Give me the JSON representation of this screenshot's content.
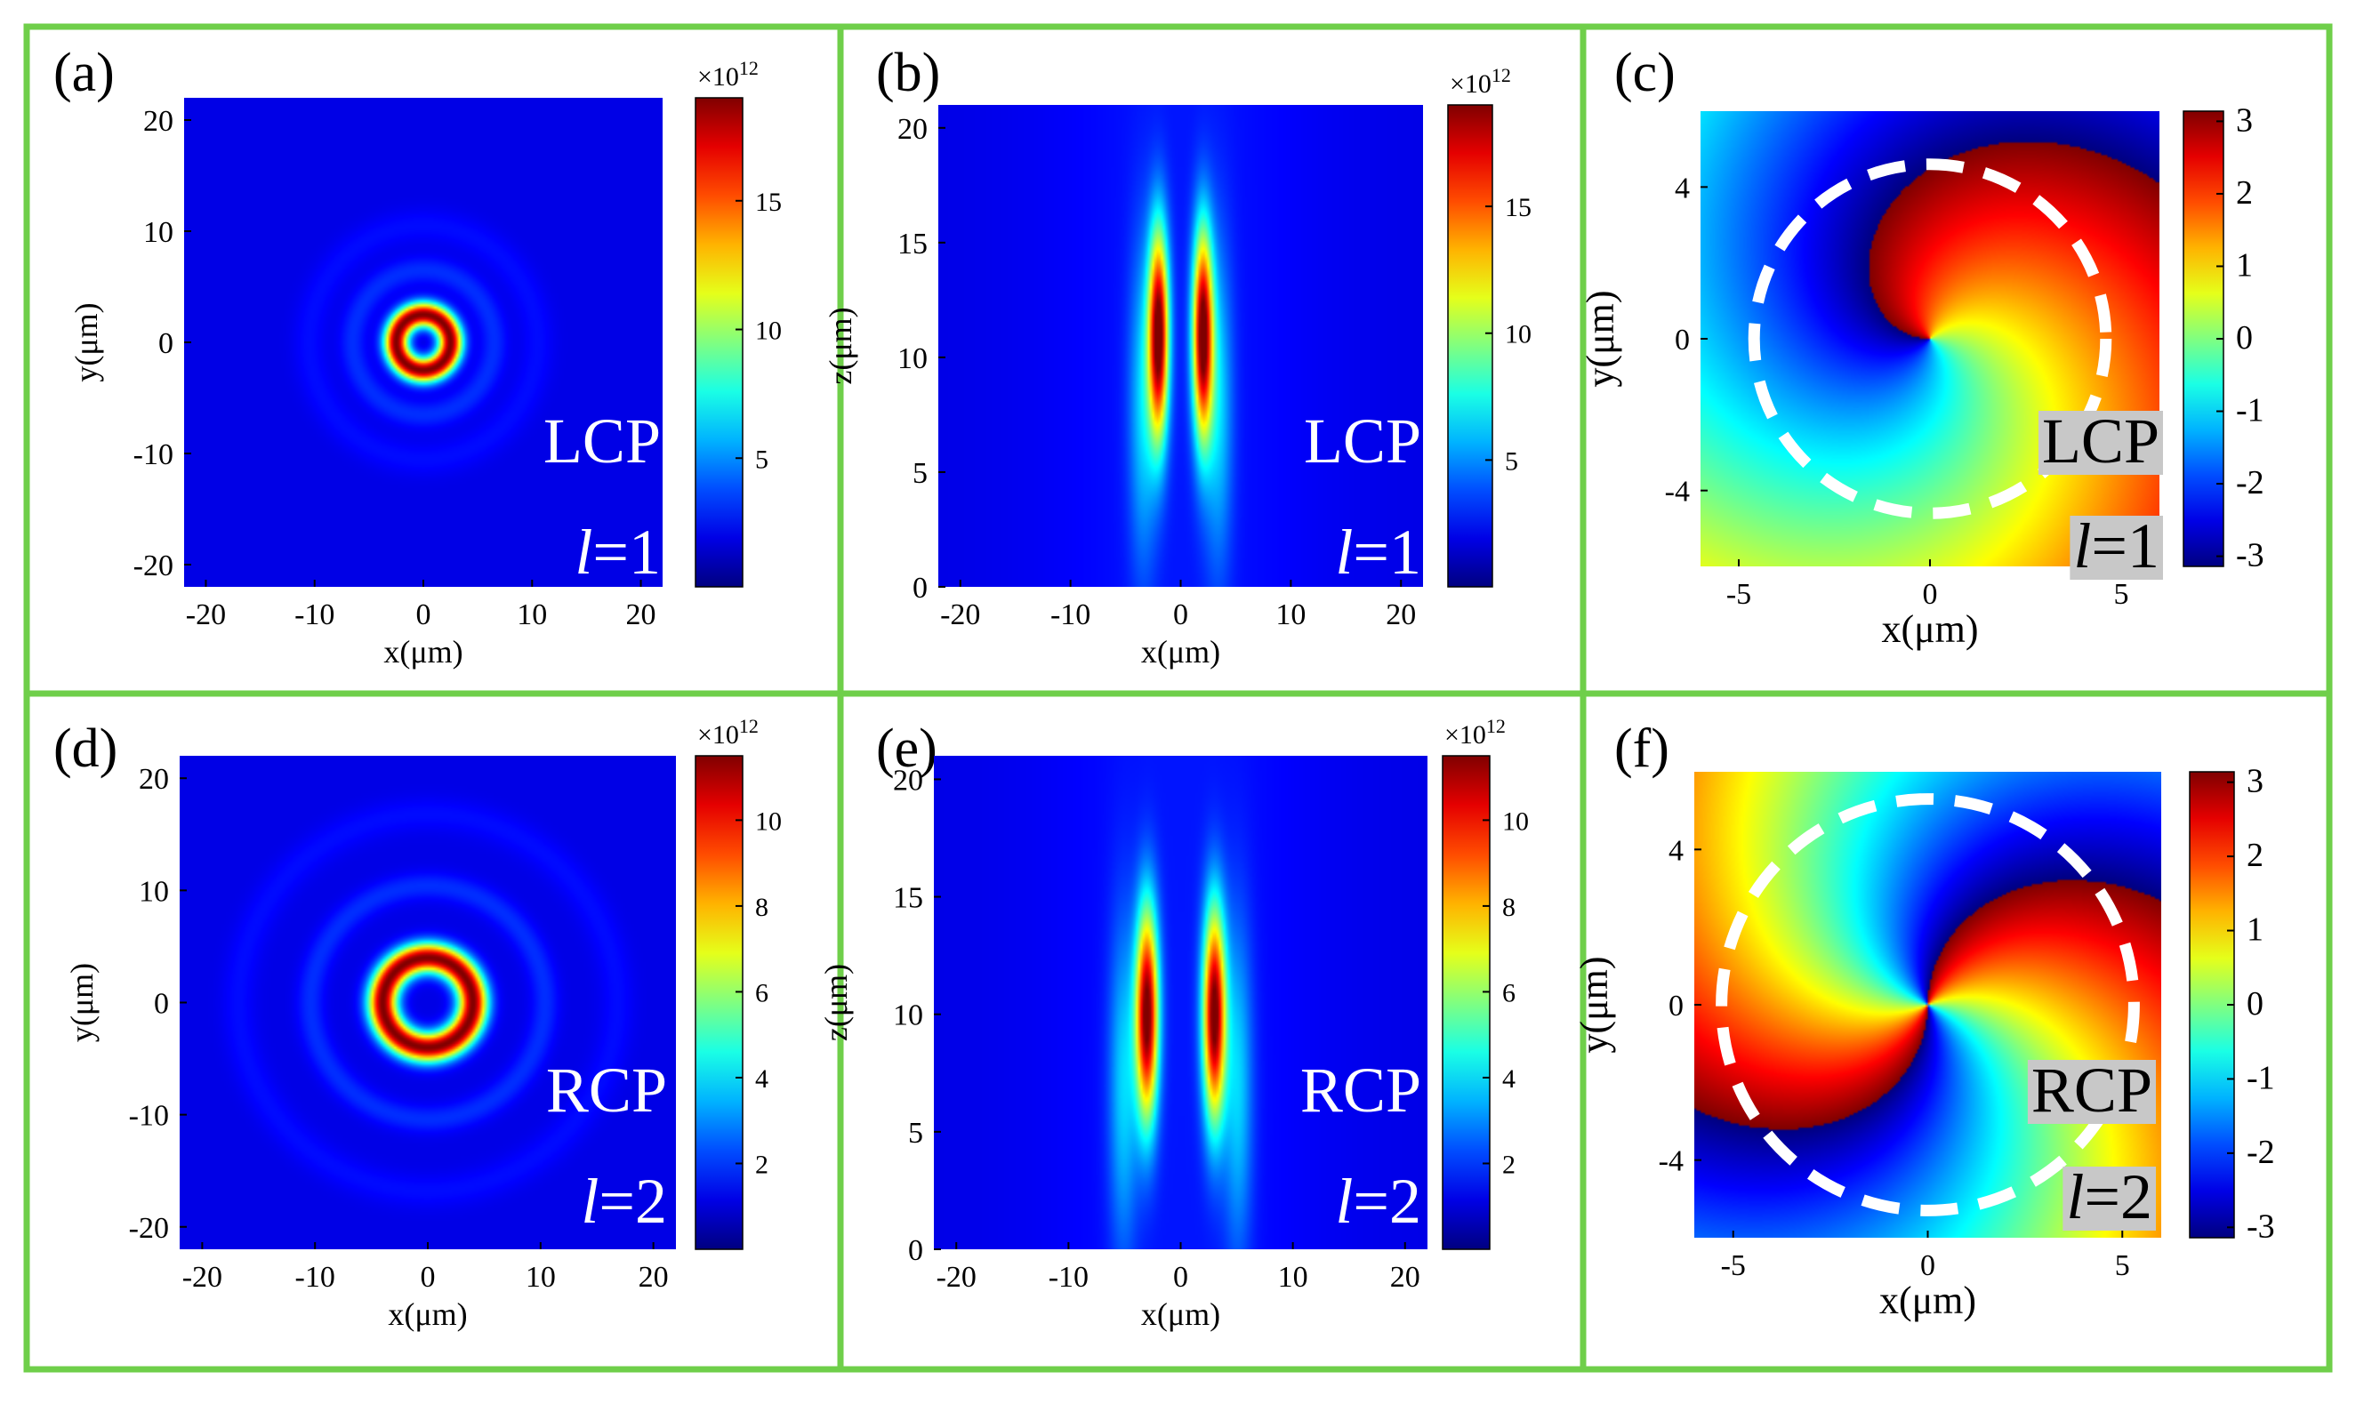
{
  "colors": {
    "frame": "#6fcf4a",
    "jet": [
      "#00008f",
      "#0000ff",
      "#00ffff",
      "#ffff00",
      "#ff0000",
      "#800000"
    ],
    "label_box": "#c8c8c8",
    "dashed_circle": "#ffffff"
  },
  "chart_data": [
    {
      "id": "a",
      "type": "heatmap",
      "panel_label": "(a)",
      "xlabel": "x(μm)",
      "ylabel": "y(μm)",
      "xlim": [
        -22,
        22
      ],
      "ylim": [
        -22,
        22
      ],
      "xticks": [
        -20,
        -10,
        0,
        10,
        20
      ],
      "xtick_labels": [
        "-20",
        "-10",
        "0",
        "10",
        "20"
      ],
      "yticks": [
        -20,
        -10,
        0,
        10,
        20
      ],
      "ytick_labels": [
        "-20",
        "-10",
        "0",
        "10",
        "20"
      ],
      "colorbar": {
        "ticks": [
          5,
          10,
          15
        ],
        "tick_labels": [
          "5",
          "10",
          "15"
        ],
        "range": [
          0,
          19
        ],
        "exponent": "×10",
        "exponent_sup": "12"
      },
      "annotation_lines": [
        "LCP",
        "=1"
      ],
      "annotation_italic": "l",
      "pattern": {
        "kind": "ring",
        "peak_radius_um": 2.5,
        "width_um": 1.1
      }
    },
    {
      "id": "b",
      "type": "heatmap",
      "panel_label": "(b)",
      "xlabel": "x(μm)",
      "ylabel": "z(μm)",
      "xlim": [
        -22,
        22
      ],
      "ylim": [
        0,
        21
      ],
      "xticks": [
        -20,
        -10,
        0,
        10,
        20
      ],
      "xtick_labels": [
        "-20",
        "-10",
        "0",
        "10",
        "20"
      ],
      "yticks": [
        0,
        5,
        10,
        15,
        20
      ],
      "ytick_labels": [
        "0",
        "5",
        "10",
        "15",
        "20"
      ],
      "colorbar": {
        "ticks": [
          5,
          10,
          15
        ],
        "tick_labels": [
          "5",
          "10",
          "15"
        ],
        "range": [
          0,
          19
        ],
        "exponent": "×10",
        "exponent_sup": "12"
      },
      "annotation_lines": [
        "LCP",
        "=1"
      ],
      "annotation_italic": "l",
      "pattern": {
        "kind": "lobes",
        "lobe_x_um": 2.0,
        "center_z_um": 11,
        "length_um": 4.5,
        "width_um": 0.9
      }
    },
    {
      "id": "c",
      "type": "heatmap",
      "panel_label": "(c)",
      "xlabel": "x(μm)",
      "ylabel": "y(μm)",
      "xlim": [
        -6,
        6
      ],
      "ylim": [
        -6,
        6
      ],
      "xticks": [
        -5,
        0,
        5
      ],
      "xtick_labels": [
        "-5",
        "0",
        "5"
      ],
      "yticks": [
        -4,
        0,
        4
      ],
      "ytick_labels": [
        "-4",
        "0",
        "4"
      ],
      "colorbar": {
        "ticks": [
          -3,
          -2,
          -1,
          0,
          1,
          2,
          3
        ],
        "tick_labels": [
          "-3",
          "-2",
          "-1",
          "0",
          "1",
          "2",
          "3"
        ],
        "range": [
          -3.14,
          3.14
        ]
      },
      "annotation_lines": [
        "LCP",
        "=1"
      ],
      "annotation_italic": "l",
      "pattern": {
        "kind": "phase",
        "charge": 1,
        "circle_radius_um": 4.6
      }
    },
    {
      "id": "d",
      "type": "heatmap",
      "panel_label": "(d)",
      "xlabel": "x(μm)",
      "ylabel": "y(μm)",
      "xlim": [
        -22,
        22
      ],
      "ylim": [
        -22,
        22
      ],
      "xticks": [
        -20,
        -10,
        0,
        10,
        20
      ],
      "xtick_labels": [
        "-20",
        "-10",
        "0",
        "10",
        "20"
      ],
      "yticks": [
        -20,
        -10,
        0,
        10,
        20
      ],
      "ytick_labels": [
        "-20",
        "-10",
        "0",
        "10",
        "20"
      ],
      "colorbar": {
        "ticks": [
          2,
          4,
          6,
          8,
          10
        ],
        "tick_labels": [
          "2",
          "4",
          "6",
          "8",
          "10"
        ],
        "range": [
          0,
          11.5
        ],
        "exponent": "×10",
        "exponent_sup": "12"
      },
      "annotation_lines": [
        "RCP",
        "=2"
      ],
      "annotation_italic": "l",
      "pattern": {
        "kind": "ring",
        "peak_radius_um": 4.0,
        "width_um": 1.3
      }
    },
    {
      "id": "e",
      "type": "heatmap",
      "panel_label": "(e)",
      "xlabel": "x(μm)",
      "ylabel": "z(μm)",
      "xlim": [
        -22,
        22
      ],
      "ylim": [
        0,
        21
      ],
      "xticks": [
        -20,
        -10,
        0,
        10,
        20
      ],
      "xtick_labels": [
        "-20",
        "-10",
        "0",
        "10",
        "20"
      ],
      "yticks": [
        0,
        5,
        10,
        15,
        20
      ],
      "ytick_labels": [
        "0",
        "5",
        "10",
        "15",
        "20"
      ],
      "colorbar": {
        "ticks": [
          2,
          4,
          6,
          8,
          10
        ],
        "tick_labels": [
          "2",
          "4",
          "6",
          "8",
          "10"
        ],
        "range": [
          0,
          11.5
        ],
        "exponent": "×10",
        "exponent_sup": "12"
      },
      "annotation_lines": [
        "RCP",
        "=2"
      ],
      "annotation_italic": "l",
      "pattern": {
        "kind": "lobes",
        "lobe_x_um": 3.0,
        "center_z_um": 10,
        "length_um": 4.5,
        "width_um": 1.0
      }
    },
    {
      "id": "f",
      "type": "heatmap",
      "panel_label": "(f)",
      "xlabel": "x(μm)",
      "ylabel": "y(μm)",
      "xlim": [
        -6,
        6
      ],
      "ylim": [
        -6,
        6
      ],
      "xticks": [
        -5,
        0,
        5
      ],
      "xtick_labels": [
        "-5",
        "0",
        "5"
      ],
      "yticks": [
        -4,
        0,
        4
      ],
      "ytick_labels": [
        "-4",
        "0",
        "4"
      ],
      "colorbar": {
        "ticks": [
          -3,
          -2,
          -1,
          0,
          1,
          2,
          3
        ],
        "tick_labels": [
          "-3",
          "-2",
          "-1",
          "0",
          "1",
          "2",
          "3"
        ],
        "range": [
          -3.14,
          3.14
        ]
      },
      "annotation_lines": [
        "RCP",
        "=2"
      ],
      "annotation_italic": "l",
      "pattern": {
        "kind": "phase",
        "charge": 2,
        "circle_radius_um": 5.3
      }
    }
  ]
}
